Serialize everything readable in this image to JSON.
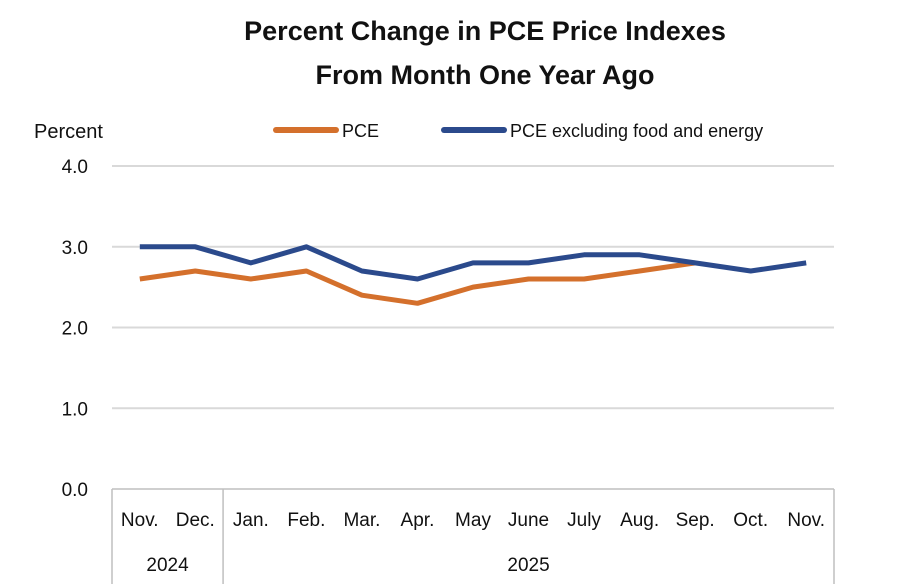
{
  "chart_data": {
    "type": "line",
    "title": "Percent Change in PCE Price Indexes",
    "subtitle": "From Month One Year Ago",
    "ylabel": "Percent",
    "xlabel": "",
    "ylim": [
      0,
      4
    ],
    "yticks": [
      "0.0",
      "1.0",
      "2.0",
      "3.0",
      "4.0"
    ],
    "categories": [
      "Nov.",
      "Dec.",
      "Jan.",
      "Feb.",
      "Mar.",
      "Apr.",
      "May",
      "June",
      "July",
      "Aug.",
      "Sep.",
      "Oct.",
      "Nov."
    ],
    "year_groups": [
      {
        "label": "2024",
        "count": 2
      },
      {
        "label": "2025",
        "count": 11
      }
    ],
    "grid": true,
    "legend_position": "top",
    "series": [
      {
        "name": "PCE",
        "color": "#d4702c",
        "values": [
          2.6,
          2.7,
          2.6,
          2.7,
          2.4,
          2.3,
          2.5,
          2.6,
          2.6,
          2.7,
          2.8,
          null,
          null
        ]
      },
      {
        "name": "PCE excluding food and energy",
        "color": "#2b4a8c",
        "values": [
          3.0,
          3.0,
          2.8,
          3.0,
          2.7,
          2.6,
          2.8,
          2.8,
          2.9,
          2.9,
          2.8,
          2.7,
          2.8
        ]
      }
    ]
  }
}
